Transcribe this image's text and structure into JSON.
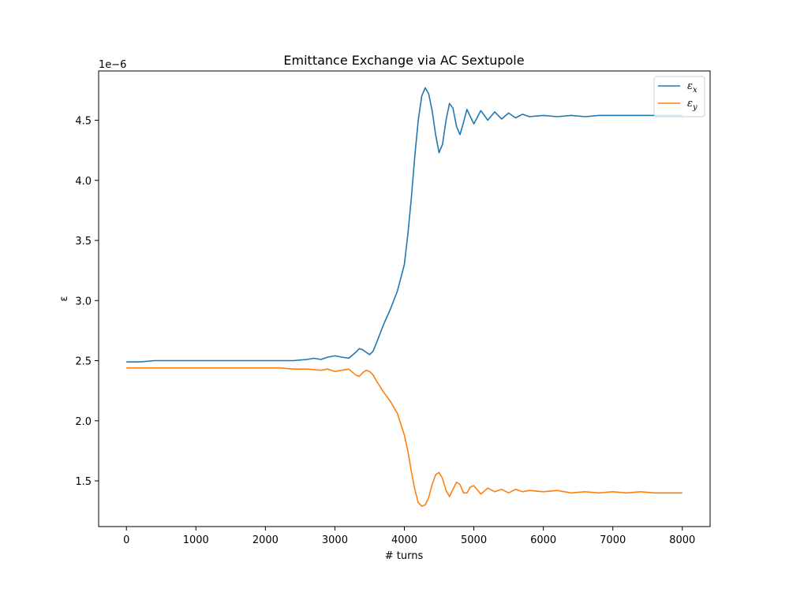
{
  "chart_data": {
    "type": "line",
    "title": "Emittance Exchange via AC Sextupole",
    "xlabel": "# turns",
    "ylabel": "ε",
    "y_offset_text": "1e−6",
    "xlim": [
      -400,
      8400
    ],
    "ylim": [
      1.12,
      4.91
    ],
    "xticks": [
      0,
      1000,
      2000,
      3000,
      4000,
      5000,
      6000,
      7000,
      8000
    ],
    "xtick_labels": [
      "0",
      "1000",
      "2000",
      "3000",
      "4000",
      "5000",
      "6000",
      "7000",
      "8000"
    ],
    "yticks": [
      1.5,
      2.0,
      2.5,
      3.0,
      3.5,
      4.0,
      4.5
    ],
    "ytick_labels": [
      "1.5",
      "2.0",
      "2.5",
      "3.0",
      "3.5",
      "4.0",
      "4.5"
    ],
    "grid": false,
    "legend_position": "top-right",
    "series": [
      {
        "name": "εx",
        "legend_main": "ε",
        "legend_sub": "x",
        "color": "#1f77b4",
        "x": [
          0,
          200,
          400,
          600,
          800,
          1000,
          1200,
          1400,
          1600,
          1800,
          2000,
          2200,
          2400,
          2600,
          2700,
          2800,
          2900,
          3000,
          3100,
          3200,
          3300,
          3350,
          3400,
          3450,
          3500,
          3550,
          3600,
          3700,
          3800,
          3900,
          4000,
          4050,
          4100,
          4150,
          4200,
          4250,
          4300,
          4350,
          4400,
          4450,
          4500,
          4550,
          4600,
          4650,
          4700,
          4750,
          4800,
          4850,
          4900,
          4950,
          5000,
          5100,
          5200,
          5300,
          5400,
          5500,
          5600,
          5700,
          5800,
          6000,
          6200,
          6400,
          6600,
          6800,
          7000,
          7200,
          7400,
          7600,
          7800,
          8000
        ],
        "y": [
          2.49,
          2.49,
          2.5,
          2.5,
          2.5,
          2.5,
          2.5,
          2.5,
          2.5,
          2.5,
          2.5,
          2.5,
          2.5,
          2.51,
          2.52,
          2.51,
          2.53,
          2.54,
          2.53,
          2.52,
          2.57,
          2.6,
          2.59,
          2.57,
          2.55,
          2.58,
          2.65,
          2.8,
          2.93,
          3.08,
          3.3,
          3.55,
          3.85,
          4.2,
          4.5,
          4.7,
          4.77,
          4.72,
          4.58,
          4.38,
          4.23,
          4.3,
          4.5,
          4.64,
          4.6,
          4.45,
          4.38,
          4.48,
          4.59,
          4.53,
          4.47,
          4.58,
          4.5,
          4.57,
          4.51,
          4.56,
          4.52,
          4.55,
          4.53,
          4.54,
          4.53,
          4.54,
          4.53,
          4.54,
          4.54,
          4.54,
          4.54,
          4.54,
          4.54,
          4.54
        ]
      },
      {
        "name": "εy",
        "legend_main": "ε",
        "legend_sub": "y",
        "color": "#ff7f0e",
        "x": [
          0,
          200,
          400,
          600,
          800,
          1000,
          1200,
          1400,
          1600,
          1800,
          2000,
          2200,
          2400,
          2600,
          2800,
          2900,
          3000,
          3100,
          3200,
          3300,
          3350,
          3400,
          3450,
          3500,
          3550,
          3600,
          3700,
          3800,
          3900,
          4000,
          4050,
          4100,
          4150,
          4200,
          4250,
          4300,
          4350,
          4400,
          4450,
          4500,
          4550,
          4600,
          4650,
          4700,
          4750,
          4800,
          4850,
          4900,
          4950,
          5000,
          5100,
          5200,
          5300,
          5400,
          5500,
          5600,
          5700,
          5800,
          6000,
          6200,
          6400,
          6600,
          6800,
          7000,
          7200,
          7400,
          7600,
          7800,
          8000
        ],
        "y": [
          2.44,
          2.44,
          2.44,
          2.44,
          2.44,
          2.44,
          2.44,
          2.44,
          2.44,
          2.44,
          2.44,
          2.44,
          2.43,
          2.43,
          2.42,
          2.43,
          2.41,
          2.42,
          2.43,
          2.38,
          2.37,
          2.4,
          2.42,
          2.41,
          2.38,
          2.33,
          2.24,
          2.16,
          2.06,
          1.88,
          1.75,
          1.58,
          1.43,
          1.32,
          1.29,
          1.3,
          1.36,
          1.47,
          1.55,
          1.57,
          1.52,
          1.42,
          1.37,
          1.43,
          1.49,
          1.47,
          1.4,
          1.4,
          1.45,
          1.46,
          1.39,
          1.44,
          1.41,
          1.43,
          1.4,
          1.43,
          1.41,
          1.42,
          1.41,
          1.42,
          1.4,
          1.41,
          1.4,
          1.41,
          1.4,
          1.41,
          1.4,
          1.4,
          1.4
        ]
      }
    ]
  }
}
